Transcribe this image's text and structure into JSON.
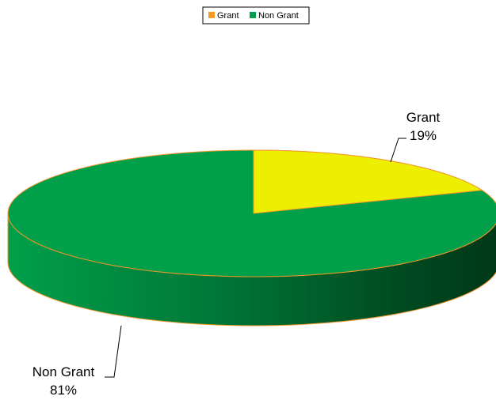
{
  "chart_data": {
    "type": "pie",
    "style": "3d",
    "title": "",
    "legend_position": "top",
    "slices": [
      {
        "label": "Grant",
        "value": 19,
        "value_label": "19%",
        "color": "#eeee00",
        "legend_color": "#f79a1e"
      },
      {
        "label": "Non Grant",
        "value": 81,
        "value_label": "81%",
        "color": "#00a04a",
        "legend_color": "#00a04a"
      }
    ],
    "edge_color": "#f0952a",
    "side_gradient": [
      "#00a04a",
      "#007a38",
      "#004a20",
      "#003818"
    ]
  }
}
